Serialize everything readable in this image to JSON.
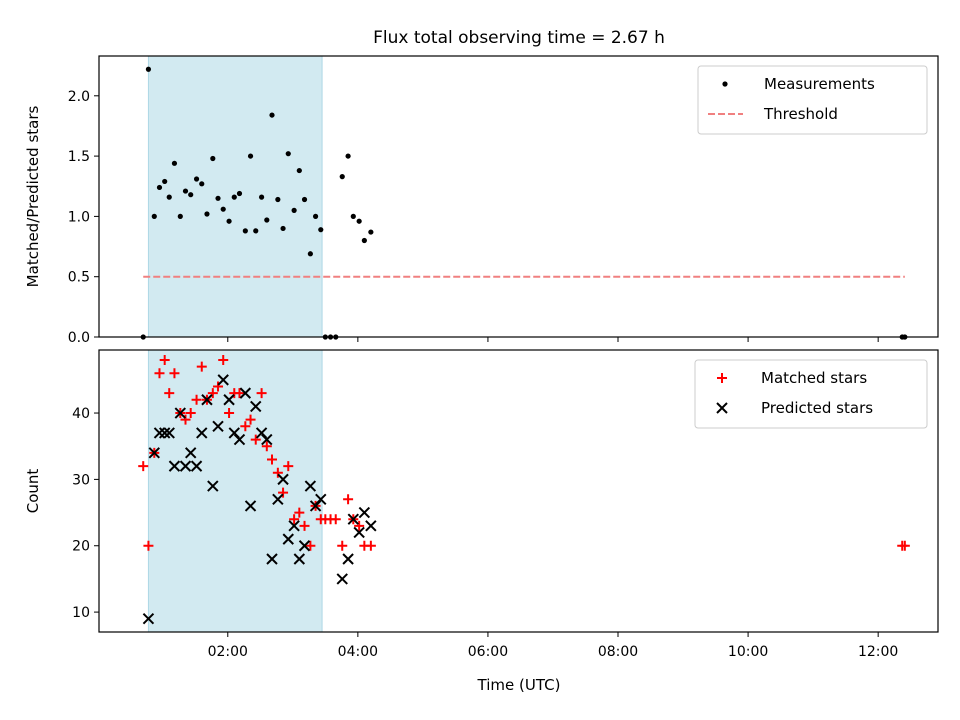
{
  "title": "Flux total observing time = 2.67 h",
  "x_axis": {
    "label": "Time (UTC)",
    "range_hours": [
      0.02,
      12.92
    ],
    "ticks": [
      {
        "value": 2,
        "label": "02:00"
      },
      {
        "value": 4,
        "label": "04:00"
      },
      {
        "value": 6,
        "label": "06:00"
      },
      {
        "value": 8,
        "label": "08:00"
      },
      {
        "value": 10,
        "label": "10:00"
      },
      {
        "value": 12,
        "label": "12:00"
      }
    ]
  },
  "observing_window": {
    "start": 0.78,
    "end": 3.45,
    "color": "#add8e6"
  },
  "chart_data": [
    {
      "type": "scatter",
      "ylabel": "Matched/Predicted stars",
      "ylim": [
        0,
        2.33
      ],
      "yticks": [
        {
          "value": 0,
          "label": "0.0"
        },
        {
          "value": 0.5,
          "label": "0.5"
        },
        {
          "value": 1.0,
          "label": "1.0"
        },
        {
          "value": 1.5,
          "label": "1.5"
        },
        {
          "value": 2.0,
          "label": "2.0"
        }
      ],
      "legend_position": "top-right",
      "series": [
        {
          "name": "Measurements",
          "kind": "dots",
          "color": "#000000",
          "points": [
            [
              0.7,
              0
            ],
            [
              0.78,
              2.22
            ],
            [
              0.87,
              1.0
            ],
            [
              0.95,
              1.24
            ],
            [
              1.03,
              1.29
            ],
            [
              1.1,
              1.16
            ],
            [
              1.18,
              1.44
            ],
            [
              1.27,
              1.0
            ],
            [
              1.35,
              1.21
            ],
            [
              1.43,
              1.18
            ],
            [
              1.52,
              1.31
            ],
            [
              1.6,
              1.27
            ],
            [
              1.68,
              1.02
            ],
            [
              1.77,
              1.48
            ],
            [
              1.85,
              1.15
            ],
            [
              1.93,
              1.06
            ],
            [
              2.02,
              0.96
            ],
            [
              2.1,
              1.16
            ],
            [
              2.18,
              1.19
            ],
            [
              2.27,
              0.88
            ],
            [
              2.35,
              1.5
            ],
            [
              2.43,
              0.88
            ],
            [
              2.52,
              1.16
            ],
            [
              2.6,
              0.97
            ],
            [
              2.68,
              1.84
            ],
            [
              2.77,
              1.14
            ],
            [
              2.85,
              0.9
            ],
            [
              2.93,
              1.52
            ],
            [
              3.02,
              1.05
            ],
            [
              3.1,
              1.38
            ],
            [
              3.18,
              1.14
            ],
            [
              3.27,
              0.69
            ],
            [
              3.35,
              1.0
            ],
            [
              3.43,
              0.89
            ],
            [
              3.5,
              0
            ],
            [
              3.58,
              0
            ],
            [
              3.66,
              0
            ],
            [
              3.76,
              1.33
            ],
            [
              3.85,
              1.5
            ],
            [
              3.93,
              1.0
            ],
            [
              4.02,
              0.96
            ],
            [
              4.1,
              0.8
            ],
            [
              4.2,
              0.87
            ],
            [
              12.37,
              0
            ],
            [
              12.41,
              0
            ]
          ]
        },
        {
          "name": "Threshold",
          "kind": "dashed-line",
          "color": "#f08080",
          "points": [
            [
              0.7,
              0.5
            ],
            [
              12.41,
              0.5
            ]
          ]
        }
      ]
    },
    {
      "type": "scatter",
      "ylabel": "Count",
      "xlabel": "Time (UTC)",
      "ylim": [
        7,
        49.5
      ],
      "yticks": [
        {
          "value": 10,
          "label": "10"
        },
        {
          "value": 20,
          "label": "20"
        },
        {
          "value": 30,
          "label": "30"
        },
        {
          "value": 40,
          "label": "40"
        }
      ],
      "legend_position": "top-right",
      "series": [
        {
          "name": "Matched stars",
          "marker": "plus",
          "color": "#ff0000",
          "points": [
            [
              0.7,
              32
            ],
            [
              0.78,
              20
            ],
            [
              0.87,
              34
            ],
            [
              0.95,
              46
            ],
            [
              1.03,
              48
            ],
            [
              1.1,
              43
            ],
            [
              1.18,
              46
            ],
            [
              1.27,
              40
            ],
            [
              1.35,
              39
            ],
            [
              1.43,
              40
            ],
            [
              1.52,
              42
            ],
            [
              1.6,
              47
            ],
            [
              1.68,
              42
            ],
            [
              1.77,
              43
            ],
            [
              1.85,
              44
            ],
            [
              1.93,
              48
            ],
            [
              2.02,
              40
            ],
            [
              2.1,
              43
            ],
            [
              2.18,
              43
            ],
            [
              2.27,
              38
            ],
            [
              2.35,
              39
            ],
            [
              2.43,
              36
            ],
            [
              2.52,
              43
            ],
            [
              2.6,
              35
            ],
            [
              2.68,
              33
            ],
            [
              2.77,
              31
            ],
            [
              2.85,
              28
            ],
            [
              2.93,
              32
            ],
            [
              3.02,
              24
            ],
            [
              3.1,
              25
            ],
            [
              3.18,
              23
            ],
            [
              3.27,
              20
            ],
            [
              3.35,
              26
            ],
            [
              3.43,
              24
            ],
            [
              3.5,
              24
            ],
            [
              3.58,
              24
            ],
            [
              3.66,
              24
            ],
            [
              3.76,
              20
            ],
            [
              3.85,
              27
            ],
            [
              3.93,
              24
            ],
            [
              4.02,
              23
            ],
            [
              4.1,
              20
            ],
            [
              4.2,
              20
            ],
            [
              12.37,
              20
            ],
            [
              12.41,
              20
            ]
          ]
        },
        {
          "name": "Predicted stars",
          "marker": "x",
          "color": "#000000",
          "points": [
            [
              0.78,
              9
            ],
            [
              0.87,
              34
            ],
            [
              0.95,
              37
            ],
            [
              1.03,
              37
            ],
            [
              1.1,
              37
            ],
            [
              1.18,
              32
            ],
            [
              1.27,
              40
            ],
            [
              1.35,
              32
            ],
            [
              1.43,
              34
            ],
            [
              1.52,
              32
            ],
            [
              1.6,
              37
            ],
            [
              1.68,
              42
            ],
            [
              1.77,
              29
            ],
            [
              1.85,
              38
            ],
            [
              1.93,
              45
            ],
            [
              2.02,
              42
            ],
            [
              2.1,
              37
            ],
            [
              2.18,
              36
            ],
            [
              2.27,
              43
            ],
            [
              2.35,
              26
            ],
            [
              2.43,
              41
            ],
            [
              2.52,
              37
            ],
            [
              2.6,
              36
            ],
            [
              2.68,
              18
            ],
            [
              2.77,
              27
            ],
            [
              2.85,
              30
            ],
            [
              2.93,
              21
            ],
            [
              3.02,
              23
            ],
            [
              3.1,
              18
            ],
            [
              3.18,
              20
            ],
            [
              3.27,
              29
            ],
            [
              3.35,
              26
            ],
            [
              3.43,
              27
            ],
            [
              3.76,
              15
            ],
            [
              3.85,
              18
            ],
            [
              3.93,
              24
            ],
            [
              4.02,
              22
            ],
            [
              4.1,
              25
            ],
            [
              4.2,
              23
            ]
          ]
        }
      ]
    }
  ]
}
